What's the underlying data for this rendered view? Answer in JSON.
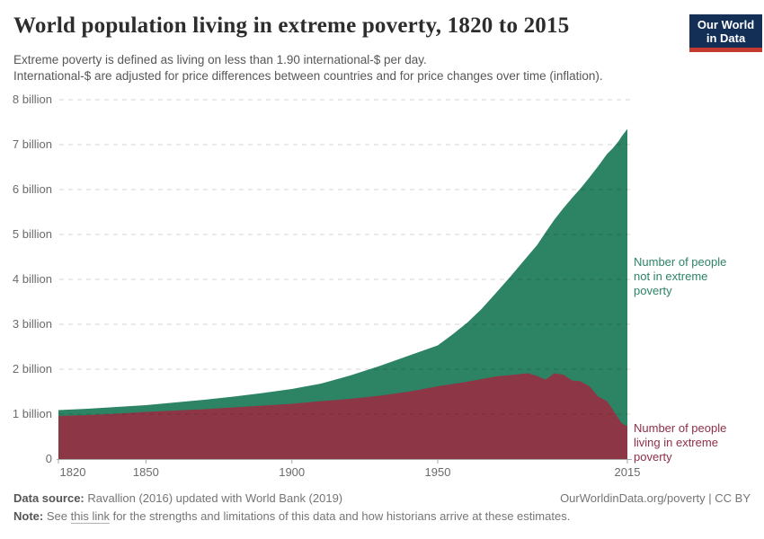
{
  "header": {
    "title": "World population living in extreme poverty, 1820 to 2015",
    "subtitle_line1": "Extreme poverty is defined as living on less than 1.90 international-$ per day.",
    "subtitle_line2": "International-$ are adjusted for price differences between countries and for price changes over time (inflation).",
    "logo": {
      "line1": "Our World",
      "line2": "in Data",
      "bg_color": "#132f56",
      "bar_color": "#c43a31"
    }
  },
  "chart_data": {
    "type": "area",
    "stacked": true,
    "title": "World population living in extreme poverty, 1820 to 2015",
    "x": [
      1820,
      1830,
      1840,
      1850,
      1860,
      1870,
      1880,
      1890,
      1900,
      1910,
      1920,
      1930,
      1940,
      1950,
      1955,
      1960,
      1965,
      1970,
      1975,
      1981,
      1984,
      1987,
      1990,
      1993,
      1996,
      1999,
      2002,
      2005,
      2008,
      2010,
      2012,
      2013,
      2015
    ],
    "series": [
      {
        "name": "Number of people living in extreme poverty",
        "color": "#8D3646",
        "values": [
          0.96,
          0.98,
          1.01,
          1.05,
          1.08,
          1.11,
          1.15,
          1.19,
          1.23,
          1.29,
          1.34,
          1.41,
          1.5,
          1.62,
          1.67,
          1.72,
          1.78,
          1.84,
          1.87,
          1.91,
          1.85,
          1.77,
          1.91,
          1.88,
          1.75,
          1.73,
          1.62,
          1.39,
          1.29,
          1.1,
          0.9,
          0.8,
          0.73
        ]
      },
      {
        "name": "Number of people not in extreme poverty",
        "color": "#2C8465",
        "values": [
          0.13,
          0.14,
          0.15,
          0.15,
          0.18,
          0.21,
          0.24,
          0.28,
          0.33,
          0.39,
          0.52,
          0.66,
          0.8,
          0.91,
          1.1,
          1.31,
          1.56,
          1.86,
          2.2,
          2.62,
          2.91,
          3.28,
          3.42,
          3.7,
          4.06,
          4.3,
          4.65,
          5.13,
          5.5,
          5.82,
          6.18,
          6.38,
          6.62
        ]
      }
    ],
    "unit": "billion people",
    "ylim": [
      0,
      8
    ],
    "grid": "dashed horizontal",
    "legend_position": "right-annotations",
    "xlabel": "",
    "ylabel": ""
  },
  "axes": {
    "y": [
      {
        "text": "8 billion",
        "value": 8
      },
      {
        "text": "7 billion",
        "value": 7
      },
      {
        "text": "6 billion",
        "value": 6
      },
      {
        "text": "5 billion",
        "value": 5
      },
      {
        "text": "4 billion",
        "value": 4
      },
      {
        "text": "3 billion",
        "value": 3
      },
      {
        "text": "2 billion",
        "value": 2
      },
      {
        "text": "1 billion",
        "value": 1
      },
      {
        "text": "0",
        "value": 0
      }
    ],
    "x": [
      {
        "text": "1820",
        "year": 1820
      },
      {
        "text": "1850",
        "year": 1850
      },
      {
        "text": "1900",
        "year": 1900
      },
      {
        "text": "1950",
        "year": 1950
      },
      {
        "text": "2015",
        "year": 2015
      }
    ]
  },
  "footer": {
    "data_source_label": "Data source:",
    "data_source_text": "Ravallion (2016) updated with World Bank (2019)",
    "link_text": "OurWorldinData.org/poverty | CC BY",
    "note_label": "Note:",
    "note_before_link": "See",
    "note_link_text": "this link",
    "note_after_link": "for the strengths and limitations of this data and how historians arrive at these estimates."
  }
}
